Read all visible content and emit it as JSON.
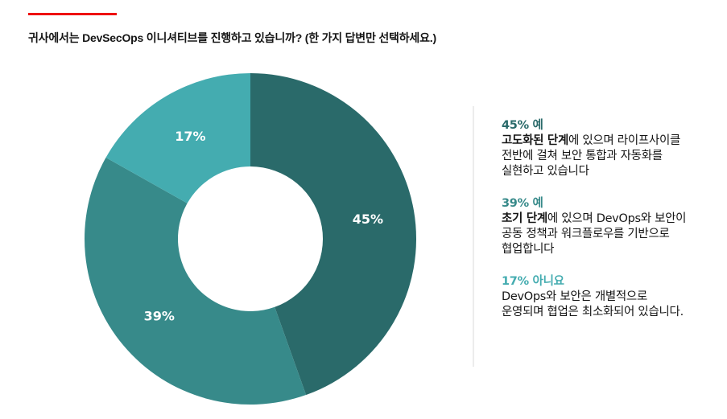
{
  "header": {
    "question": "귀사에서는 DevSecOps 이니셔티브를 진행하고 있습니까? (한 가지 답변만 선택하세요.)",
    "accent_color": "#ee0000"
  },
  "legend": {
    "items": [
      {
        "heading": "45% 예",
        "bold_text": "고도화된 단계",
        "line1_rest": "에 있으며 라이프사이클",
        "line2": "전반에 걸쳐 보안 통합과 자동화를",
        "line3": "실현하고 있습니다",
        "color": "#2a6a6a"
      },
      {
        "heading": "39% 예",
        "bold_text": "초기 단계",
        "line1_rest": "에 있으며 DevOps와 보안이",
        "line2": "공동 정책과 워크플로우를 기반으로",
        "line3": "협업합니다",
        "color": "#378a8a"
      },
      {
        "heading": "17% 아니요",
        "bold_text": "",
        "line1_rest": "DevOps와 보안은 개별적으로",
        "line2": "운영되며 협업은 최소화되어 있습니다.",
        "line3": "",
        "color": "#44acb0"
      }
    ]
  },
  "chart_data": {
    "type": "pie",
    "subtype": "donut",
    "title": "귀사에서는 DevSecOps 이니셔티브를 진행하고 있습니까? (한 가지 답변만 선택하세요.)",
    "categories": [
      "예 (고도화된 단계)",
      "예 (초기 단계)",
      "아니요"
    ],
    "values": [
      45,
      39,
      17
    ],
    "labels": [
      "45%",
      "39%",
      "17%"
    ],
    "colors": [
      "#2a6a6a",
      "#378a8a",
      "#44acb0"
    ],
    "start_angle": "12 o'clock, clockwise",
    "legend_position": "right",
    "center": [
      311,
      297
    ],
    "outer_radius": 206,
    "inner_radius": 90
  }
}
